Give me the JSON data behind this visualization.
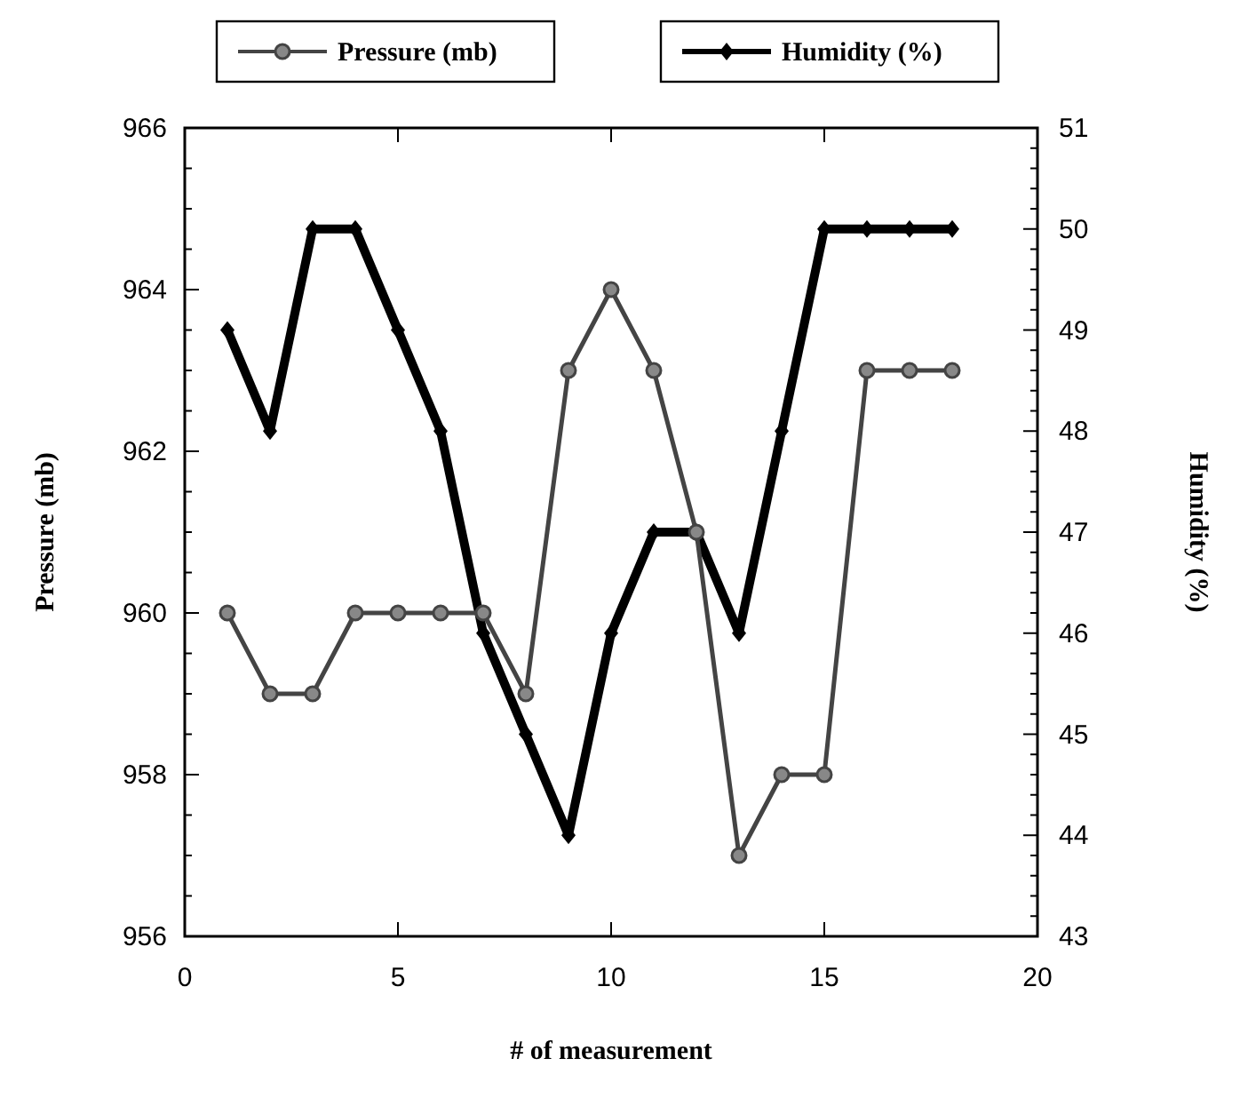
{
  "chart_data": {
    "type": "line",
    "xlabel": "# of measurement",
    "ylabel": "Pressure (mb)",
    "y2label": "Humidity (%)",
    "x": [
      1,
      2,
      3,
      4,
      5,
      6,
      7,
      8,
      9,
      10,
      11,
      12,
      13,
      14,
      15,
      16,
      17,
      18
    ],
    "xlim": [
      0,
      20
    ],
    "xticks": [
      0,
      5,
      10,
      15,
      20
    ],
    "ylim": [
      956,
      966
    ],
    "yticks": [
      956,
      958,
      960,
      962,
      964,
      966
    ],
    "y2lim": [
      43,
      51
    ],
    "y2ticks": [
      43,
      44,
      45,
      46,
      47,
      48,
      49,
      50,
      51
    ],
    "legend": "top",
    "grid": false,
    "series": [
      {
        "name": "Pressure (mb)",
        "color": "#444444",
        "marker": "circle",
        "values": [
          960,
          959,
          959,
          960,
          960,
          960,
          960,
          959,
          963,
          964,
          963,
          961,
          957,
          958,
          958,
          963,
          963,
          963
        ]
      },
      {
        "name": "Humidity (%)",
        "color": "#000000",
        "marker": "diamond",
        "axis": "y2",
        "values": [
          49,
          48,
          50,
          50,
          49,
          48,
          46,
          45,
          44,
          46,
          47,
          47,
          46,
          48,
          50,
          50,
          50,
          50
        ]
      }
    ]
  }
}
